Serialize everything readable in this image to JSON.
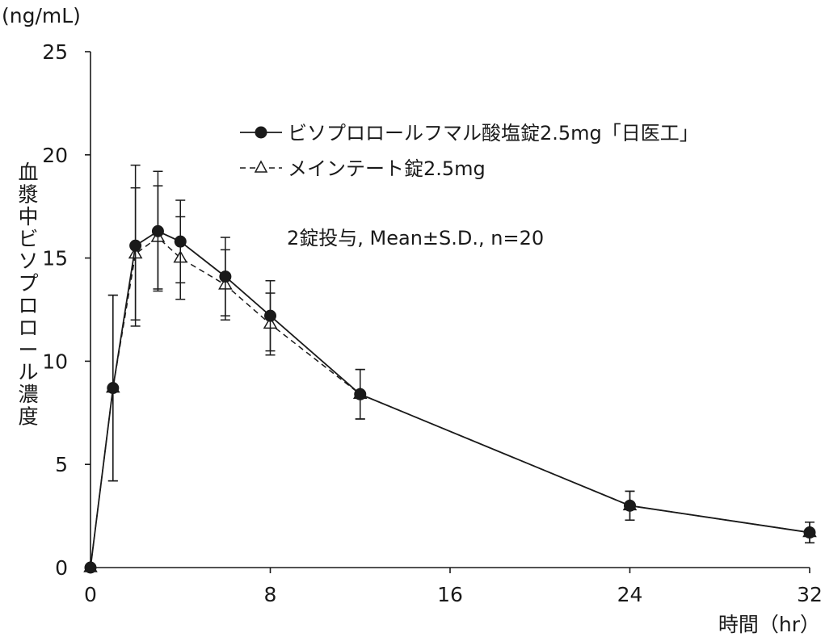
{
  "chart_data": {
    "type": "line",
    "ylabel_unit": "(ng/mL)",
    "ylabel": "血漿中ビソプロロール濃度",
    "xlabel": "時間（hr）",
    "xlim": [
      0,
      32
    ],
    "ylim": [
      0,
      25
    ],
    "x_ticks": [
      0,
      8,
      16,
      24,
      32
    ],
    "y_ticks": [
      0,
      5,
      10,
      15,
      20,
      25
    ],
    "annotation": "2錠投与, Mean±S.D., n=20",
    "series": [
      {
        "name": "ビソプロロールフマル酸塩錠2.5mg「日医工」",
        "marker": "filled-circle",
        "line": "solid",
        "x": [
          0,
          1,
          2,
          3,
          4,
          6,
          8,
          12,
          24,
          32
        ],
        "y": [
          0,
          8.7,
          15.6,
          16.3,
          15.8,
          14.1,
          12.2,
          8.4,
          3.0,
          1.7
        ],
        "sd": [
          0,
          4.5,
          3.9,
          2.9,
          2.0,
          1.9,
          1.7,
          1.2,
          0.7,
          0.5
        ]
      },
      {
        "name": "メインテート錠2.5mg",
        "marker": "open-triangle",
        "line": "dashed",
        "x": [
          0,
          1,
          2,
          3,
          4,
          6,
          8,
          12,
          24,
          32
        ],
        "y": [
          0,
          8.7,
          15.2,
          16.0,
          15.0,
          13.7,
          11.8,
          8.4,
          3.0,
          1.7
        ],
        "sd": [
          0,
          4.5,
          3.2,
          2.5,
          2.0,
          1.7,
          1.5,
          1.2,
          0.7,
          0.5
        ]
      }
    ],
    "colors": {
      "ink": "#1a1a1a",
      "background": "#ffffff"
    }
  }
}
